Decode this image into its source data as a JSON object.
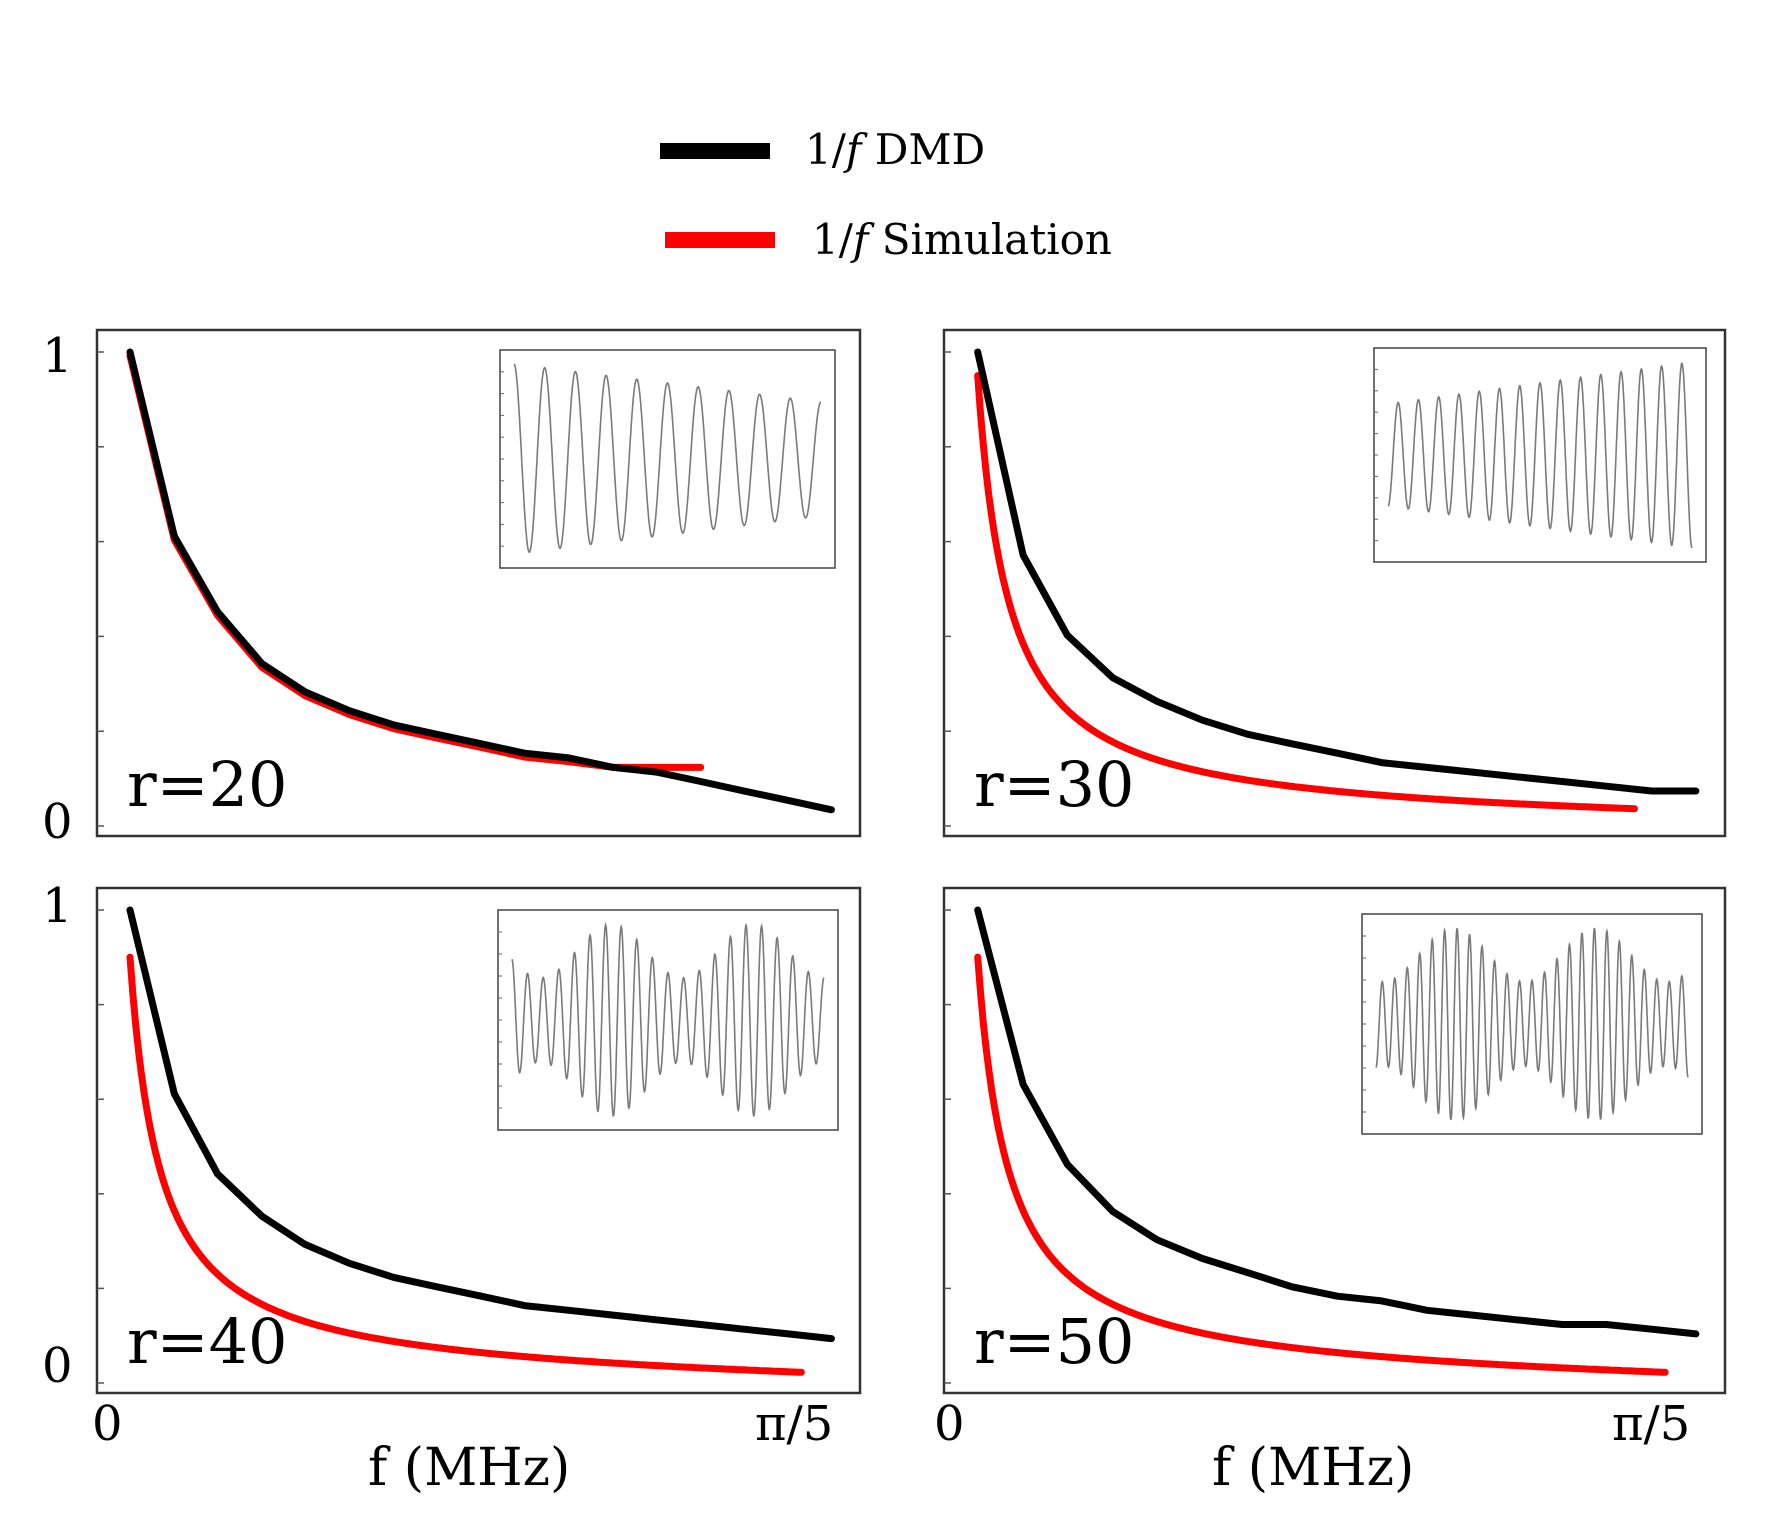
{
  "legend": {
    "items": [
      {
        "label": "1/𝑓  DMD",
        "color": "#000000"
      },
      {
        "label": "1/𝑓 Simulation",
        "color": "#ff0000"
      }
    ]
  },
  "x_axis": {
    "title": "f (MHz)",
    "tick_start": "0",
    "tick_end": "π/5"
  },
  "y_axis": {
    "tick_top": "1",
    "tick_bottom": "0"
  },
  "chart_data": [
    {
      "type": "line",
      "label": "r=20",
      "xlim": [
        0,
        0.628
      ],
      "ylim": [
        0,
        1
      ],
      "series": [
        {
          "name": "1/𝑓  DMD",
          "color": "#000000",
          "x": [
            0.025,
            0.062,
            0.098,
            0.135,
            0.171,
            0.208,
            0.245,
            0.281,
            0.318,
            0.354,
            0.391,
            0.428,
            0.464,
            0.501,
            0.537,
            0.574,
            0.61
          ],
          "y": [
            1.0,
            0.61,
            0.45,
            0.34,
            0.28,
            0.24,
            0.21,
            0.19,
            0.17,
            0.15,
            0.14,
            0.12,
            0.11,
            0.09,
            0.07,
            0.05,
            0.03
          ]
        },
        {
          "name": "1/𝑓 Simulation",
          "color": "#ff0000",
          "y_scale": 0.005,
          "x_end": 0.52
        }
      ],
      "inset": {
        "peaks": 10,
        "amp_start": 1.0,
        "amp_end": 0.6,
        "trend": "decreasing"
      }
    },
    {
      "type": "line",
      "label": "r=30",
      "xlim": [
        0,
        0.628
      ],
      "ylim": [
        0,
        1
      ],
      "series": [
        {
          "name": "1/𝑓  DMD",
          "color": "#000000",
          "x": [
            0.025,
            0.062,
            0.098,
            0.135,
            0.171,
            0.208,
            0.245,
            0.281,
            0.318,
            0.354,
            0.391,
            0.428,
            0.464,
            0.501,
            0.537,
            0.574,
            0.61
          ],
          "y": [
            1.0,
            0.57,
            0.4,
            0.31,
            0.26,
            0.22,
            0.19,
            0.17,
            0.15,
            0.13,
            0.12,
            0.11,
            0.1,
            0.09,
            0.08,
            0.07,
            0.07
          ]
        },
        {
          "name": "1/𝑓 Simulation",
          "color": "#ff0000",
          "y_scale": 0.01,
          "x_end": 0.56
        }
      ],
      "inset": {
        "peaks": 15,
        "amp_start": 0.55,
        "amp_end": 1.0,
        "trend": "increasing"
      }
    },
    {
      "type": "line",
      "label": "r=40",
      "xlim": [
        0,
        0.628
      ],
      "ylim": [
        0,
        1
      ],
      "series": [
        {
          "name": "1/𝑓  DMD",
          "color": "#000000",
          "x": [
            0.025,
            0.062,
            0.098,
            0.135,
            0.171,
            0.208,
            0.245,
            0.281,
            0.318,
            0.354,
            0.391,
            0.428,
            0.464,
            0.501,
            0.537,
            0.574,
            0.61
          ],
          "y": [
            1.0,
            0.61,
            0.44,
            0.35,
            0.29,
            0.25,
            0.22,
            0.2,
            0.18,
            0.16,
            0.15,
            0.14,
            0.13,
            0.12,
            0.11,
            0.1,
            0.09
          ]
        },
        {
          "name": "1/𝑓 Simulation",
          "color": "#ff0000",
          "y_scale": 0.02,
          "x_end": 0.585
        }
      ],
      "inset": {
        "peaks": 20,
        "amp_start": 0.8,
        "amp_end": 0.8,
        "trend": "modulated"
      }
    },
    {
      "type": "line",
      "label": "r=50",
      "xlim": [
        0,
        0.628
      ],
      "ylim": [
        0,
        1
      ],
      "series": [
        {
          "name": "1/𝑓  DMD",
          "color": "#000000",
          "x": [
            0.025,
            0.062,
            0.098,
            0.135,
            0.171,
            0.208,
            0.245,
            0.281,
            0.318,
            0.354,
            0.391,
            0.428,
            0.464,
            0.501,
            0.537,
            0.574,
            0.61
          ],
          "y": [
            1.0,
            0.63,
            0.46,
            0.36,
            0.3,
            0.26,
            0.23,
            0.2,
            0.18,
            0.17,
            0.15,
            0.14,
            0.13,
            0.12,
            0.12,
            0.11,
            0.1
          ]
        },
        {
          "name": "1/𝑓 Simulation",
          "color": "#ff0000",
          "y_scale": 0.02,
          "x_end": 0.585
        }
      ],
      "inset": {
        "peaks": 25,
        "amp_start": 0.8,
        "amp_end": 0.8,
        "trend": "modulated"
      }
    }
  ]
}
